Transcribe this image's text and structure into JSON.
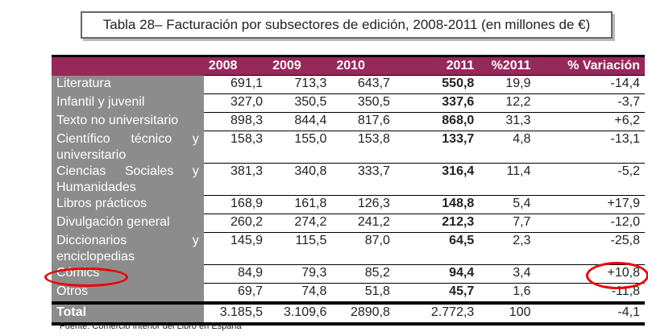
{
  "title": "Tabla 28– Facturación por subsectores de edición, 2008-2011 (en millones de €)",
  "columns": [
    "",
    "2008",
    "2009",
    "2010",
    "2011",
    "%2011",
    "% Variación"
  ],
  "rows": [
    {
      "label": "Literatura",
      "values": [
        "691,1",
        "713,3",
        "643,7",
        "550,8",
        "19,9",
        "-14,4"
      ]
    },
    {
      "label": "Infantil y juvenil",
      "values": [
        "327,0",
        "350,5",
        "350,5",
        "337,6",
        "12,2",
        "-3,7"
      ]
    },
    {
      "label": "Texto no universitario",
      "values": [
        "898,3",
        "844,4",
        "817,6",
        "868,0",
        "31,3",
        "+6,2"
      ]
    },
    {
      "label": "Científico técnico y universitario",
      "values": [
        "158,3",
        "155,0",
        "153,8",
        "133,7",
        "4,8",
        "-13,1"
      ]
    },
    {
      "label": "Ciencias Sociales y Humanidades",
      "values": [
        "381,3",
        "340,8",
        "333,7",
        "316,4",
        "11,4",
        "-5,2"
      ]
    },
    {
      "label": "Libros prácticos",
      "values": [
        "168,9",
        "161,8",
        "126,3",
        "148,8",
        "5,4",
        "+17,9"
      ]
    },
    {
      "label": "Divulgación general",
      "values": [
        "260,2",
        "274,2",
        "241,2",
        "212,3",
        "7,7",
        "-12,0"
      ]
    },
    {
      "label": "Diccionarios y enciclopedias",
      "values": [
        "145,9",
        "115,5",
        "87,0",
        "64,5",
        "2,3",
        "-25,8"
      ]
    },
    {
      "label": "Cómics",
      "values": [
        "84,9",
        "79,3",
        "85,2",
        "94,4",
        "3,4",
        "+10,8"
      ],
      "highlighted": true
    },
    {
      "label": "Otros",
      "values": [
        "69,7",
        "74,8",
        "51,8",
        "45,7",
        "1,6",
        "-11,8"
      ]
    }
  ],
  "total": {
    "label": "Total",
    "values": [
      "3.185,5",
      "3.109,6",
      "2890,8",
      "2.772,3",
      "100",
      "-4,1"
    ]
  },
  "source": "Fuente: Comercio Interior del Libro en España",
  "colors": {
    "header": "#96285a",
    "label_column": "#8c8c8c",
    "highlight_ring": "#e00000"
  }
}
